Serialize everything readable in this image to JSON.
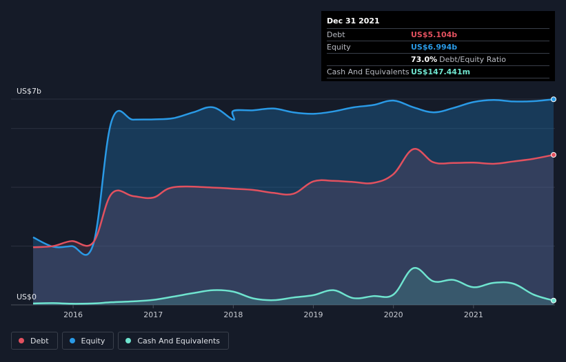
{
  "colors": {
    "background": "#151b28",
    "debt": "#e2515f",
    "equity": "#2a9ae6",
    "cash": "#6fe4cf",
    "grid": "#2c3240"
  },
  "tooltip": {
    "date": "Dec 31 2021",
    "rows": [
      {
        "label": "Debt",
        "value": "US$5.104b",
        "color": "#e2515f"
      },
      {
        "label": "Equity",
        "value": "US$6.994b",
        "color": "#2a9ae6"
      },
      {
        "label": "",
        "value": "73.0%",
        "suffix": "Debt/Equity Ratio",
        "color": "#ffffff"
      },
      {
        "label": "Cash And Equivalents",
        "value": "US$147.441m",
        "color": "#6fe4cf"
      }
    ]
  },
  "legend": [
    {
      "label": "Debt",
      "color": "#e2515f",
      "icon": "debt-dot-icon"
    },
    {
      "label": "Equity",
      "color": "#2a9ae6",
      "icon": "equity-dot-icon"
    },
    {
      "label": "Cash And Equivalents",
      "color": "#6fe4cf",
      "icon": "cash-dot-icon"
    }
  ],
  "chart_data": {
    "type": "area",
    "title": "",
    "xlabel": "",
    "ylabel": "",
    "y_tick_labels": [
      {
        "value": 7,
        "label": "US$7b"
      },
      {
        "value": 0,
        "label": "US$0"
      }
    ],
    "ylim": [
      0,
      7
    ],
    "xlim": [
      2015.5,
      2022.0
    ],
    "x_ticks": [
      2016,
      2017,
      2018,
      2019,
      2020,
      2021
    ],
    "x_tick_labels": [
      "2016",
      "2017",
      "2018",
      "2019",
      "2020",
      "2021"
    ],
    "grid": true,
    "legend_position": "bottom-left",
    "series": [
      {
        "name": "Debt",
        "color": "#e2515f",
        "points": [
          [
            2015.5,
            1.96
          ],
          [
            2015.75,
            2.0
          ],
          [
            2015.98,
            2.17
          ],
          [
            2016.25,
            2.12
          ],
          [
            2016.48,
            3.78
          ],
          [
            2016.75,
            3.7
          ],
          [
            2017.0,
            3.65
          ],
          [
            2017.25,
            4.0
          ],
          [
            2017.75,
            3.99
          ],
          [
            2018.0,
            3.95
          ],
          [
            2018.25,
            3.91
          ],
          [
            2018.5,
            3.81
          ],
          [
            2018.75,
            3.78
          ],
          [
            2019.0,
            4.2
          ],
          [
            2019.25,
            4.22
          ],
          [
            2019.5,
            4.18
          ],
          [
            2019.75,
            4.15
          ],
          [
            2020.0,
            4.45
          ],
          [
            2020.25,
            5.3
          ],
          [
            2020.5,
            4.85
          ],
          [
            2020.75,
            4.83
          ],
          [
            2021.0,
            4.84
          ],
          [
            2021.25,
            4.8
          ],
          [
            2021.5,
            4.88
          ],
          [
            2021.75,
            4.97
          ],
          [
            2022.0,
            5.104
          ]
        ]
      },
      {
        "name": "Equity",
        "color": "#2a9ae6",
        "points": [
          [
            2015.5,
            2.3
          ],
          [
            2015.75,
            1.98
          ],
          [
            2015.98,
            2.0
          ],
          [
            2016.25,
            2.05
          ],
          [
            2016.48,
            6.25
          ],
          [
            2016.75,
            6.3
          ],
          [
            2017.0,
            6.31
          ],
          [
            2017.25,
            6.35
          ],
          [
            2017.5,
            6.55
          ],
          [
            2017.75,
            6.72
          ],
          [
            2018.0,
            6.3
          ],
          [
            2018.0,
            6.6
          ],
          [
            2018.25,
            6.62
          ],
          [
            2018.5,
            6.68
          ],
          [
            2018.75,
            6.55
          ],
          [
            2019.0,
            6.5
          ],
          [
            2019.25,
            6.58
          ],
          [
            2019.5,
            6.72
          ],
          [
            2019.75,
            6.8
          ],
          [
            2020.0,
            6.95
          ],
          [
            2020.25,
            6.72
          ],
          [
            2020.5,
            6.55
          ],
          [
            2020.75,
            6.7
          ],
          [
            2021.0,
            6.9
          ],
          [
            2021.25,
            6.97
          ],
          [
            2021.5,
            6.92
          ],
          [
            2021.75,
            6.93
          ],
          [
            2022.0,
            6.994
          ]
        ]
      },
      {
        "name": "Cash And Equivalents",
        "color": "#6fe4cf",
        "points": [
          [
            2015.5,
            0.05
          ],
          [
            2015.75,
            0.06
          ],
          [
            2015.98,
            0.04
          ],
          [
            2016.25,
            0.05
          ],
          [
            2016.48,
            0.09
          ],
          [
            2016.75,
            0.12
          ],
          [
            2017.0,
            0.17
          ],
          [
            2017.25,
            0.28
          ],
          [
            2017.5,
            0.4
          ],
          [
            2017.75,
            0.5
          ],
          [
            2018.0,
            0.45
          ],
          [
            2018.25,
            0.22
          ],
          [
            2018.5,
            0.16
          ],
          [
            2018.75,
            0.25
          ],
          [
            2019.0,
            0.33
          ],
          [
            2019.25,
            0.5
          ],
          [
            2019.5,
            0.23
          ],
          [
            2019.75,
            0.3
          ],
          [
            2020.0,
            0.35
          ],
          [
            2020.25,
            1.25
          ],
          [
            2020.5,
            0.8
          ],
          [
            2020.75,
            0.85
          ],
          [
            2021.0,
            0.6
          ],
          [
            2021.25,
            0.75
          ],
          [
            2021.5,
            0.72
          ],
          [
            2021.75,
            0.35
          ],
          [
            2022.0,
            0.147
          ]
        ]
      }
    ]
  }
}
